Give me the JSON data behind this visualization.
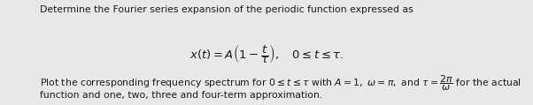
{
  "line1": "Determine the Fourier series expansion of the periodic function expressed as",
  "eq": "$x(t) = A\\left(1 - \\dfrac{t}{\\tau}\\right),\\quad 0 \\leq t \\leq \\tau.$",
  "line3_pre": "Plot the corresponding frequency spectrum for $0 \\leq t \\leq \\tau$ with $A = 1,\\ \\omega = \\pi,$ and $\\tau = \\dfrac{2\\pi}{\\omega}$ for the actual",
  "line4": "function and one, two, three and four-term approximation.",
  "bg_color": "#e8e8e8",
  "text_color": "#1a1a1a",
  "font_size_main": 7.8,
  "font_size_eq": 9.5,
  "fig_width": 6.02,
  "fig_height": 1.19,
  "dpi": 100
}
